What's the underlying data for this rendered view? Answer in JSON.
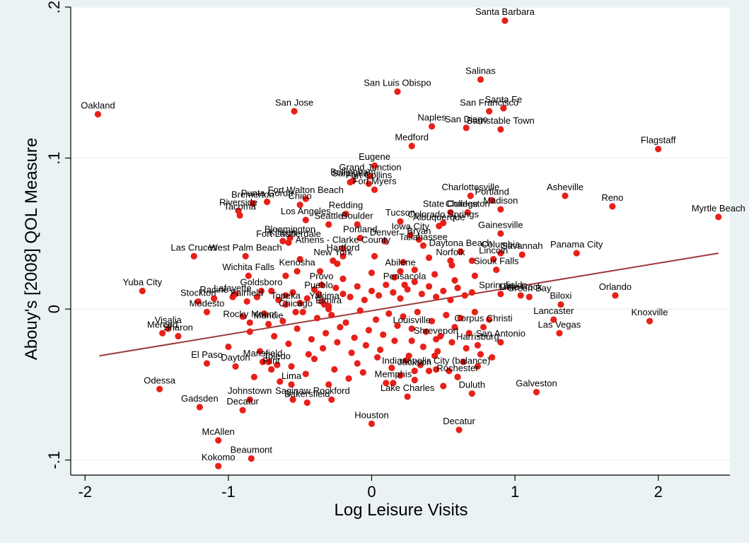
{
  "chart_data": {
    "type": "scatter",
    "title": "",
    "xlabel": "Log Leisure Visits",
    "ylabel": "Abouy's [2008] QOL Measure",
    "xlim": [
      -2.1,
      2.5
    ],
    "ylim": [
      -0.11,
      0.2
    ],
    "x_ticks": [
      -2,
      -1,
      0,
      1,
      2
    ],
    "y_ticks": [
      -0.1,
      0,
      0.1,
      0.2
    ],
    "x_tick_labels": [
      "-2",
      "-1",
      "0",
      "1",
      "2"
    ],
    "y_tick_labels": [
      "-.1",
      "0",
      ".1",
      ".2"
    ],
    "grid": "horizontal",
    "legend": "none",
    "colors": {
      "background": "#eaf2f3",
      "plot_background": "#ffffff",
      "gridline": "#eaf2f3",
      "marker": "#e8201a",
      "fit_line": "#9b3b3b"
    },
    "fit_line": {
      "x": [
        -1.9,
        2.42
      ],
      "y": [
        -0.031,
        0.037
      ]
    },
    "labeled_points": [
      {
        "label": "Santa Barbara",
        "x": 0.93,
        "y": 0.191
      },
      {
        "label": "Salinas",
        "x": 0.76,
        "y": 0.152
      },
      {
        "label": "San Luis Obispo",
        "x": 0.18,
        "y": 0.144
      },
      {
        "label": "Oakland",
        "x": -1.91,
        "y": 0.129
      },
      {
        "label": "San Jose",
        "x": -0.54,
        "y": 0.131
      },
      {
        "label": "Santa Fe",
        "x": 0.92,
        "y": 0.133
      },
      {
        "label": "San Francisco",
        "x": 0.82,
        "y": 0.131
      },
      {
        "label": "Naples",
        "x": 0.42,
        "y": 0.121
      },
      {
        "label": "San Diego",
        "x": 0.66,
        "y": 0.12
      },
      {
        "label": "Barnstable Town",
        "x": 0.9,
        "y": 0.119
      },
      {
        "label": "Medford",
        "x": 0.28,
        "y": 0.108
      },
      {
        "label": "Flagstaff",
        "x": 2.0,
        "y": 0.106
      },
      {
        "label": "Eugene",
        "x": 0.02,
        "y": 0.095
      },
      {
        "label": "Grand Junction",
        "x": -0.01,
        "y": 0.088
      },
      {
        "label": "Sarasota",
        "x": -0.15,
        "y": 0.084
      },
      {
        "label": "Fort Collins",
        "x": -0.02,
        "y": 0.083
      },
      {
        "label": "Bellingham",
        "x": -0.13,
        "y": 0.085
      },
      {
        "label": "Fort Walton Beach",
        "x": -0.46,
        "y": 0.073
      },
      {
        "label": "Punta Gorda",
        "x": -0.73,
        "y": 0.071
      },
      {
        "label": "Bremerton",
        "x": -0.83,
        "y": 0.07
      },
      {
        "label": "Charlottesville",
        "x": 0.69,
        "y": 0.075
      },
      {
        "label": "Asheville",
        "x": 1.35,
        "y": 0.075
      },
      {
        "label": "Portland",
        "x": 0.84,
        "y": 0.072
      },
      {
        "label": "Reno",
        "x": 1.68,
        "y": 0.068
      },
      {
        "label": "Fort Myers",
        "x": 0.02,
        "y": 0.079
      },
      {
        "label": "Riverside",
        "x": -0.93,
        "y": 0.065
      },
      {
        "label": "Chico",
        "x": -0.5,
        "y": 0.069
      },
      {
        "label": "Madison",
        "x": 0.9,
        "y": 0.066
      },
      {
        "label": "Tacoma",
        "x": -0.92,
        "y": 0.062
      },
      {
        "label": "State College",
        "x": 0.55,
        "y": 0.064
      },
      {
        "label": "Charleston",
        "x": 0.67,
        "y": 0.064
      },
      {
        "label": "Los Angeles",
        "x": -0.46,
        "y": 0.059
      },
      {
        "label": "Redding",
        "x": -0.18,
        "y": 0.063
      },
      {
        "label": "Myrtle Beach",
        "x": 2.42,
        "y": 0.061
      },
      {
        "label": "Boulder",
        "x": -0.1,
        "y": 0.056
      },
      {
        "label": "Tucson",
        "x": 0.2,
        "y": 0.058
      },
      {
        "label": "Colorado Springs",
        "x": 0.5,
        "y": 0.057
      },
      {
        "label": "Seattle",
        "x": -0.3,
        "y": 0.056
      },
      {
        "label": "Albuquerque",
        "x": 0.47,
        "y": 0.055
      },
      {
        "label": "Gainesville",
        "x": 0.9,
        "y": 0.05
      },
      {
        "label": "Bloomington",
        "x": -0.57,
        "y": 0.047
      },
      {
        "label": "Fort Lauderdale",
        "x": -0.58,
        "y": 0.044
      },
      {
        "label": "Killeen",
        "x": -0.62,
        "y": 0.045
      },
      {
        "label": "Iowa City",
        "x": 0.27,
        "y": 0.049
      },
      {
        "label": "Bryan",
        "x": 0.33,
        "y": 0.046
      },
      {
        "label": "Denver",
        "x": 0.09,
        "y": 0.045
      },
      {
        "label": "Portland",
        "x": -0.08,
        "y": 0.047
      },
      {
        "label": "Las Cruces",
        "x": -1.24,
        "y": 0.035
      },
      {
        "label": "West Palm Beach",
        "x": -0.88,
        "y": 0.035
      },
      {
        "label": "Athens - Clarke County",
        "x": -0.2,
        "y": 0.04
      },
      {
        "label": "Tallahassee",
        "x": 0.36,
        "y": 0.042
      },
      {
        "label": "Daytona Beach",
        "x": 0.62,
        "y": 0.038
      },
      {
        "label": "Columbia",
        "x": 0.9,
        "y": 0.037
      },
      {
        "label": "Savannah",
        "x": 1.05,
        "y": 0.036
      },
      {
        "label": "Panama City",
        "x": 1.43,
        "y": 0.037
      },
      {
        "label": "Hartford",
        "x": -0.2,
        "y": 0.035
      },
      {
        "label": "New York",
        "x": -0.27,
        "y": 0.032
      },
      {
        "label": "Norfolk",
        "x": 0.55,
        "y": 0.032
      },
      {
        "label": "Lincoln",
        "x": 0.85,
        "y": 0.033
      },
      {
        "label": "Wichita Falls",
        "x": -0.86,
        "y": 0.022
      },
      {
        "label": "Kenosha",
        "x": -0.52,
        "y": 0.025
      },
      {
        "label": "Abilene",
        "x": 0.2,
        "y": 0.025
      },
      {
        "label": "Sioux Falls",
        "x": 0.87,
        "y": 0.026
      },
      {
        "label": "Pensacola",
        "x": 0.23,
        "y": 0.016
      },
      {
        "label": "Yuba City",
        "x": -1.6,
        "y": 0.012
      },
      {
        "label": "Goldsboro",
        "x": -0.77,
        "y": 0.012
      },
      {
        "label": "Provo",
        "x": -0.35,
        "y": 0.016
      },
      {
        "label": "Racine",
        "x": -1.1,
        "y": 0.007
      },
      {
        "label": "Lafayette",
        "x": -0.97,
        "y": 0.008
      },
      {
        "label": "Pueblo",
        "x": -0.37,
        "y": 0.01
      },
      {
        "label": "Orlando",
        "x": 1.7,
        "y": 0.009
      },
      {
        "label": "Springfield",
        "x": 0.9,
        "y": 0.01
      },
      {
        "label": "Little Rock",
        "x": 1.04,
        "y": 0.009
      },
      {
        "label": "Green Bay",
        "x": 1.1,
        "y": 0.008
      },
      {
        "label": "Stockton",
        "x": -1.21,
        "y": 0.005
      },
      {
        "label": "Fairfield",
        "x": -0.87,
        "y": 0.005
      },
      {
        "label": "Topeka",
        "x": -0.6,
        "y": 0.003
      },
      {
        "label": "Biloxi",
        "x": 1.32,
        "y": 0.003
      },
      {
        "label": "Yakima",
        "x": -0.33,
        "y": 0.003
      },
      {
        "label": "Modesto",
        "x": -1.15,
        "y": -0.002
      },
      {
        "label": "Chicago",
        "x": -0.53,
        "y": -0.002
      },
      {
        "label": "Elmira",
        "x": -0.3,
        "y": 0.0
      },
      {
        "label": "Lancaster",
        "x": 1.27,
        "y": -0.007
      },
      {
        "label": "Knoxville",
        "x": 1.94,
        "y": -0.008
      },
      {
        "label": "Rocky Mount",
        "x": -0.85,
        "y": -0.009
      },
      {
        "label": "Muncie",
        "x": -0.72,
        "y": -0.01
      },
      {
        "label": "Merced",
        "x": -1.46,
        "y": -0.016
      },
      {
        "label": "Visalia",
        "x": -1.42,
        "y": -0.013
      },
      {
        "label": "Sharon",
        "x": -1.35,
        "y": -0.018
      },
      {
        "label": "Corpus Christi",
        "x": 0.78,
        "y": -0.012
      },
      {
        "label": "Las Vegas",
        "x": 1.31,
        "y": -0.016
      },
      {
        "label": "Louisville",
        "x": 0.28,
        "y": -0.013
      },
      {
        "label": "San Antonio",
        "x": 0.9,
        "y": -0.022
      },
      {
        "label": "Shreveport",
        "x": 0.45,
        "y": -0.02
      },
      {
        "label": "Harrisburg",
        "x": 0.74,
        "y": -0.024
      },
      {
        "label": "El Paso",
        "x": -1.15,
        "y": -0.036
      },
      {
        "label": "Mansfield",
        "x": -0.76,
        "y": -0.035
      },
      {
        "label": "Dayton",
        "x": -0.95,
        "y": -0.038
      },
      {
        "label": "Flint",
        "x": -0.7,
        "y": -0.04
      },
      {
        "label": "Toledo",
        "x": -0.66,
        "y": -0.037
      },
      {
        "label": "Odessa",
        "x": -1.48,
        "y": -0.053
      },
      {
        "label": "Lima",
        "x": -0.56,
        "y": -0.05
      },
      {
        "label": "Jackson",
        "x": 0.3,
        "y": -0.041
      },
      {
        "label": "Indianapolis City (balance)",
        "x": 0.45,
        "y": -0.04
      },
      {
        "label": "Rochester",
        "x": 0.6,
        "y": -0.045
      },
      {
        "label": "Memphis",
        "x": 0.15,
        "y": -0.049
      },
      {
        "label": "Galveston",
        "x": 1.15,
        "y": -0.055
      },
      {
        "label": "Duluth",
        "x": 0.7,
        "y": -0.056
      },
      {
        "label": "Gadsden",
        "x": -1.2,
        "y": -0.065
      },
      {
        "label": "Johnstown",
        "x": -0.85,
        "y": -0.06
      },
      {
        "label": "Saginaw",
        "x": -0.55,
        "y": -0.06
      },
      {
        "label": "Decatur",
        "x": -0.9,
        "y": -0.067
      },
      {
        "label": "Bakersfield",
        "x": -0.45,
        "y": -0.062
      },
      {
        "label": "Rockford",
        "x": -0.28,
        "y": -0.06
      },
      {
        "label": "Lake Charles",
        "x": 0.25,
        "y": -0.058
      },
      {
        "label": "Houston",
        "x": 0.0,
        "y": -0.076
      },
      {
        "label": "Decatur",
        "x": 0.61,
        "y": -0.08
      },
      {
        "label": "McAllen",
        "x": -1.07,
        "y": -0.087
      },
      {
        "label": "Beaumont",
        "x": -0.84,
        "y": -0.099
      },
      {
        "label": "Kokomo",
        "x": -1.07,
        "y": -0.104
      }
    ],
    "labels": [
      "Santa Barbara",
      "Salinas",
      "San Luis Obispo",
      "Oakland",
      "San Jose",
      "Santa Fe",
      "San Francisco",
      "Naples",
      "San Diego",
      "Barnstable Town",
      "Medford",
      "Flagstaff",
      "Eugene",
      "Grand Junction",
      "Sarasota",
      "Fort Collins",
      "Bellingham",
      "Fort Walton Beach",
      "Punta Gorda",
      "Bremerton",
      "Charlottesville",
      "Asheville",
      "Portland",
      "Reno",
      "Fort Myers",
      "Riverside",
      "Chico",
      "Madison",
      "Tacoma",
      "State College",
      "Charleston",
      "Los Angeles",
      "Redding",
      "Myrtle Beach",
      "Boulder",
      "Tucson",
      "Colorado Springs",
      "Seattle",
      "Albuquerque",
      "Gainesville",
      "Bloomington",
      "Fort Lauderdale",
      "Killeen",
      "Iowa City",
      "Bryan",
      "Denver",
      "Portland",
      "Las Cruces",
      "West Palm Beach",
      "Athens - Clarke County",
      "Tallahassee",
      "Daytona Beach",
      "Columbia",
      "Savannah",
      "Panama City",
      "Hartford",
      "New York",
      "Norfolk",
      "Lincoln",
      "Wichita Falls",
      "Kenosha",
      "Abilene",
      "Sioux Falls",
      "Pensacola",
      "Yuba City",
      "Goldsboro",
      "Provo",
      "Racine",
      "Lafayette",
      "Pueblo",
      "Orlando",
      "Springfield",
      "Little Rock",
      "Green Bay",
      "Stockton",
      "Fairfield",
      "Topeka",
      "Biloxi",
      "Yakima",
      "Modesto",
      "Chicago",
      "Elmira",
      "Lancaster",
      "Knoxville",
      "Rocky Mount",
      "Muncie",
      "Merced",
      "Visalia",
      "Sharon",
      "Corpus Christi",
      "Las Vegas",
      "Louisville",
      "San Antonio",
      "Shreveport",
      "Harrisburg",
      "El Paso",
      "Mansfield",
      "Dayton",
      "Flint",
      "Toledo",
      "Odessa",
      "Lima",
      "Jackson",
      "Indianapolis City (balance)",
      "Rochester",
      "Memphis",
      "Galveston",
      "Duluth",
      "Gadsden",
      "Johnstown",
      "Saginaw",
      "Decatur",
      "Bakersfield",
      "Rockford",
      "Lake Charles",
      "Houston",
      "Decatur",
      "McAllen",
      "Beaumont",
      "Kokomo"
    ],
    "unlabeled_points": {
      "x": [
        -0.95,
        -0.8,
        -0.7,
        -0.65,
        -0.6,
        -0.55,
        -0.5,
        -0.45,
        -0.4,
        -0.35,
        -0.3,
        -0.25,
        -0.2,
        -0.15,
        -0.1,
        -0.05,
        0.0,
        0.05,
        0.1,
        0.15,
        0.2,
        0.25,
        0.3,
        0.35,
        0.4,
        0.45,
        0.5,
        0.55,
        0.6,
        0.65,
        0.7,
        -0.9,
        -0.75,
        -0.62,
        -0.48,
        -0.38,
        -0.28,
        -0.18,
        -0.08,
        0.03,
        0.12,
        0.22,
        0.32,
        0.42,
        0.52,
        0.62,
        0.72,
        0.82,
        -0.85,
        -0.68,
        -0.52,
        -0.42,
        -0.32,
        -0.22,
        -0.12,
        -0.02,
        0.08,
        0.18,
        0.28,
        0.38,
        0.48,
        0.58,
        0.68,
        -1.0,
        -0.78,
        -0.58,
        -0.44,
        -0.34,
        -0.24,
        -0.14,
        -0.04,
        0.06,
        0.16,
        0.26,
        0.36,
        0.46,
        0.56,
        0.66,
        0.76,
        -0.72,
        -0.56,
        -0.4,
        -0.26,
        -0.1,
        0.04,
        0.14,
        0.24,
        0.34,
        0.44,
        0.54,
        0.64,
        0.74,
        0.84,
        -0.82,
        -0.64,
        -0.46,
        -0.3,
        -0.16,
        -0.06,
        0.1,
        0.2,
        0.3,
        0.4,
        0.5,
        0.6,
        -0.6,
        -0.36,
        -0.2,
        0.0,
        0.16,
        0.3,
        0.44,
        0.58,
        0.72,
        -0.5,
        -0.24,
        0.02,
        0.22,
        0.4,
        0.56,
        0.7
      ],
      "y": [
        0.01,
        0.008,
        0.012,
        0.006,
        0.009,
        0.011,
        0.004,
        0.007,
        0.013,
        0.005,
        0.002,
        0.014,
        0.01,
        0.008,
        0.015,
        0.006,
        0.012,
        0.009,
        0.016,
        0.011,
        0.007,
        0.013,
        0.018,
        0.01,
        0.015,
        0.008,
        0.012,
        0.006,
        0.014,
        0.009,
        0.011,
        -0.005,
        -0.003,
        -0.008,
        -0.002,
        -0.006,
        -0.004,
        -0.009,
        -0.001,
        -0.007,
        -0.003,
        -0.005,
        -0.002,
        -0.008,
        -0.004,
        -0.006,
        -0.002,
        -0.007,
        -0.015,
        -0.018,
        -0.013,
        -0.02,
        -0.016,
        -0.012,
        -0.019,
        -0.014,
        -0.017,
        -0.011,
        -0.021,
        -0.015,
        -0.018,
        -0.012,
        -0.016,
        -0.025,
        -0.028,
        -0.023,
        -0.03,
        -0.026,
        -0.022,
        -0.029,
        -0.024,
        -0.027,
        -0.021,
        -0.031,
        -0.025,
        -0.028,
        -0.022,
        -0.026,
        -0.03,
        -0.035,
        -0.038,
        -0.033,
        -0.04,
        -0.036,
        -0.032,
        -0.039,
        -0.034,
        -0.037,
        -0.031,
        -0.041,
        -0.035,
        -0.038,
        -0.032,
        -0.045,
        -0.048,
        -0.043,
        -0.05,
        -0.046,
        -0.042,
        -0.049,
        -0.044,
        -0.047,
        -0.041,
        -0.051,
        -0.045,
        0.022,
        0.025,
        0.02,
        0.024,
        0.021,
        0.026,
        0.023,
        0.019,
        0.022,
        0.033,
        0.03,
        0.035,
        0.031,
        0.034,
        0.029,
        0.032
      ]
    }
  }
}
